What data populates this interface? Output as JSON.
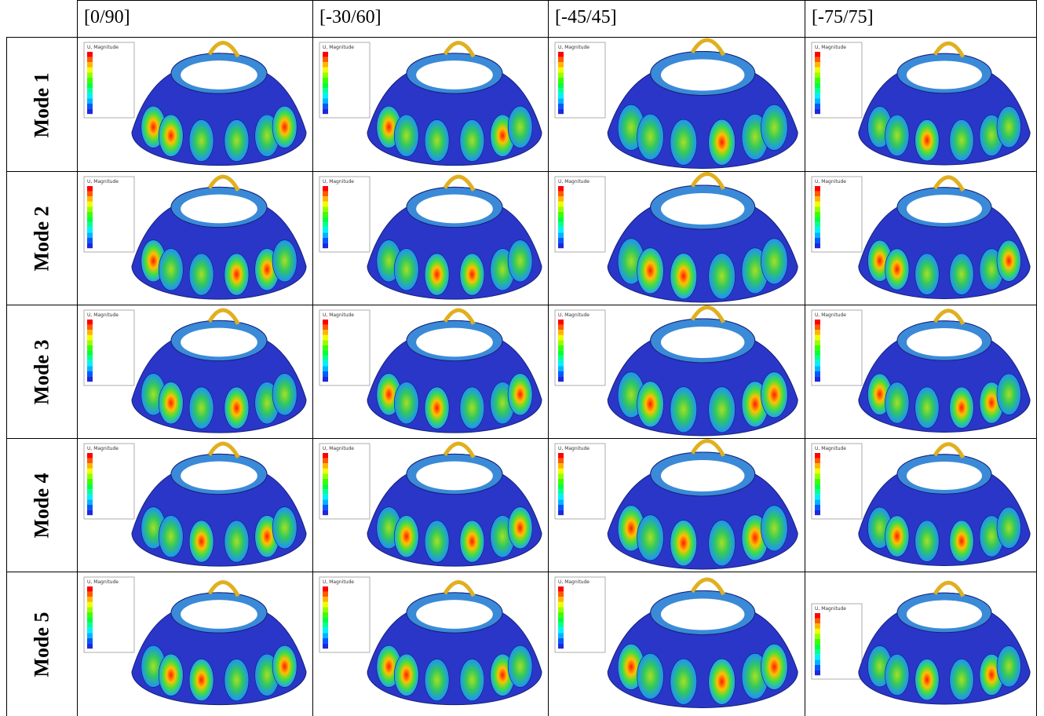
{
  "table": {
    "columns": [
      "[0/90]",
      "[-30/60]",
      "[-45/45]",
      "[-75/75]"
    ],
    "rows": [
      "Mode 1",
      "Mode 2",
      "Mode 3",
      "Mode 4",
      "Mode 5"
    ]
  },
  "legend_title": "U, Magnitude"
}
